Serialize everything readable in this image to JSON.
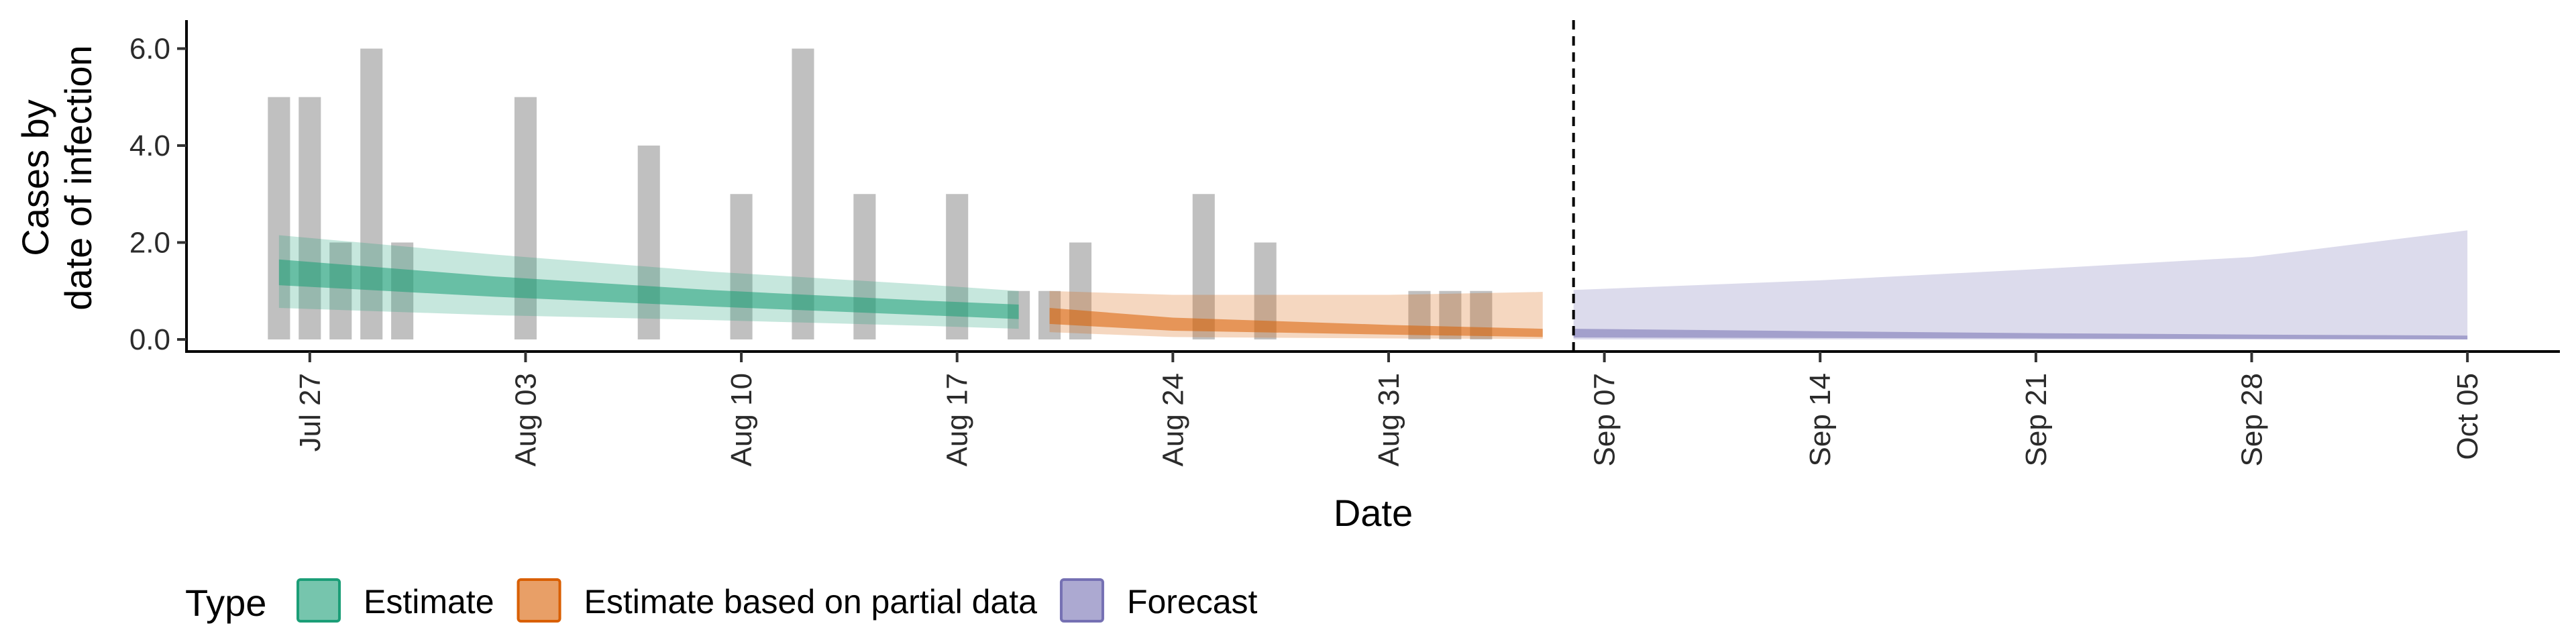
{
  "chart_data": {
    "type": "area",
    "title": "",
    "xlabel": "Date",
    "ylabel_lines": [
      "Cases by",
      "date of infection"
    ],
    "ylim": [
      0,
      6.2
    ],
    "y_ticks": [
      {
        "value": 0,
        "label": "0.0"
      },
      {
        "value": 2,
        "label": "2.0"
      },
      {
        "value": 4,
        "label": "4.0"
      },
      {
        "value": 6,
        "label": "6.0"
      }
    ],
    "x_range": [
      "2020-07-23",
      "2020-10-08"
    ],
    "x_ticks": [
      {
        "date": "2020-07-27",
        "label": "Jul 27"
      },
      {
        "date": "2020-08-03",
        "label": "Aug 03"
      },
      {
        "date": "2020-08-10",
        "label": "Aug 10"
      },
      {
        "date": "2020-08-17",
        "label": "Aug 17"
      },
      {
        "date": "2020-08-24",
        "label": "Aug 24"
      },
      {
        "date": "2020-08-31",
        "label": "Aug 31"
      },
      {
        "date": "2020-09-07",
        "label": "Sep 07"
      },
      {
        "date": "2020-09-14",
        "label": "Sep 14"
      },
      {
        "date": "2020-09-21",
        "label": "Sep 21"
      },
      {
        "date": "2020-09-28",
        "label": "Sep 28"
      },
      {
        "date": "2020-10-05",
        "label": "Oct 05"
      }
    ],
    "reported_cases": [
      {
        "date": "2020-07-26",
        "value": 5
      },
      {
        "date": "2020-07-27",
        "value": 5
      },
      {
        "date": "2020-07-28",
        "value": 2
      },
      {
        "date": "2020-07-29",
        "value": 6
      },
      {
        "date": "2020-07-30",
        "value": 2
      },
      {
        "date": "2020-08-03",
        "value": 5
      },
      {
        "date": "2020-08-07",
        "value": 4
      },
      {
        "date": "2020-08-10",
        "value": 3
      },
      {
        "date": "2020-08-12",
        "value": 6
      },
      {
        "date": "2020-08-14",
        "value": 3
      },
      {
        "date": "2020-08-17",
        "value": 3
      },
      {
        "date": "2020-08-19",
        "value": 1
      },
      {
        "date": "2020-08-20",
        "value": 1
      },
      {
        "date": "2020-08-21",
        "value": 2
      },
      {
        "date": "2020-08-25",
        "value": 3
      },
      {
        "date": "2020-08-27",
        "value": 2
      },
      {
        "date": "2020-09-01",
        "value": 1
      },
      {
        "date": "2020-09-02",
        "value": 1
      },
      {
        "date": "2020-09-03",
        "value": 1
      }
    ],
    "forecast_start": "2020-09-06",
    "series": [
      {
        "name": "Estimate",
        "color": "#1b9e77",
        "points": [
          {
            "date": "2020-07-26",
            "lo90": 0.65,
            "hi90": 2.15,
            "lo50": 1.12,
            "hi50": 1.65
          },
          {
            "date": "2020-08-02",
            "lo90": 0.5,
            "hi90": 1.75,
            "lo50": 0.88,
            "hi50": 1.3
          },
          {
            "date": "2020-08-09",
            "lo90": 0.4,
            "hi90": 1.4,
            "lo50": 0.68,
            "hi50": 1.02
          },
          {
            "date": "2020-08-16",
            "lo90": 0.28,
            "hi90": 1.13,
            "lo50": 0.5,
            "hi50": 0.8
          },
          {
            "date": "2020-08-19",
            "lo90": 0.22,
            "hi90": 1.0,
            "lo50": 0.42,
            "hi50": 0.72
          }
        ]
      },
      {
        "name": "Estimate based on partial data",
        "color": "#d95f02",
        "points": [
          {
            "date": "2020-08-20",
            "lo90": 0.15,
            "hi90": 1.0,
            "lo50": 0.32,
            "hi50": 0.65
          },
          {
            "date": "2020-08-24",
            "lo90": 0.05,
            "hi90": 0.92,
            "lo50": 0.18,
            "hi50": 0.45
          },
          {
            "date": "2020-08-31",
            "lo90": 0.02,
            "hi90": 0.92,
            "lo50": 0.1,
            "hi50": 0.3
          },
          {
            "date": "2020-09-05",
            "lo90": 0.01,
            "hi90": 0.98,
            "lo50": 0.05,
            "hi50": 0.22
          }
        ]
      },
      {
        "name": "Forecast",
        "color": "#7570b3",
        "points": [
          {
            "date": "2020-09-06",
            "lo90": 0.0,
            "hi90": 1.02,
            "lo50": 0.04,
            "hi50": 0.22
          },
          {
            "date": "2020-09-14",
            "lo90": 0.0,
            "hi90": 1.22,
            "lo50": 0.03,
            "hi50": 0.17
          },
          {
            "date": "2020-09-21",
            "lo90": 0.0,
            "hi90": 1.45,
            "lo50": 0.02,
            "hi50": 0.13
          },
          {
            "date": "2020-09-28",
            "lo90": 0.0,
            "hi90": 1.7,
            "lo50": 0.01,
            "hi50": 0.1
          },
          {
            "date": "2020-10-05",
            "lo90": 0.0,
            "hi90": 2.25,
            "lo50": 0.0,
            "hi50": 0.08
          }
        ]
      }
    ],
    "legend": {
      "position": "bottom",
      "title": "Type",
      "entries": [
        {
          "label": "Estimate",
          "color": "#1b9e77"
        },
        {
          "label": "Estimate based on partial data",
          "color": "#d95f02"
        },
        {
          "label": "Forecast",
          "color": "#7570b3"
        }
      ]
    },
    "grid": false
  }
}
